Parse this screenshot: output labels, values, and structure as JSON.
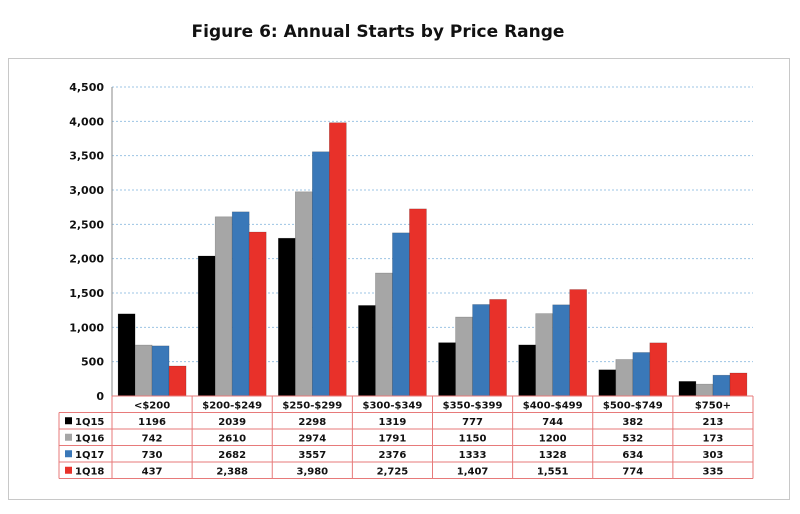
{
  "chart_data": {
    "type": "bar",
    "title": "Figure 6: Annual Starts by Price Range",
    "categories": [
      "<$200",
      "$200-$249",
      "$250-$299",
      "$300-$349",
      "$350-$399",
      "$400-$499",
      "$500-$749",
      "$750+"
    ],
    "ylim": [
      0,
      4500
    ],
    "yticks": [
      "0",
      "500",
      "1,000",
      "1,500",
      "2,000",
      "2,500",
      "3,000",
      "3,500",
      "4,000",
      "4,500"
    ],
    "ytick_values": [
      0,
      500,
      1000,
      1500,
      2000,
      2500,
      3000,
      3500,
      4000,
      4500
    ],
    "grid": true,
    "legend": "data-table",
    "series": [
      {
        "name": "1Q15",
        "color": "#000000",
        "values": [
          1196,
          2039,
          2298,
          1319,
          777,
          744,
          382,
          213
        ],
        "labels": [
          "1196",
          "2039",
          "2298",
          "1319",
          "777",
          "744",
          "382",
          "213"
        ]
      },
      {
        "name": "1Q16",
        "color": "#a6a6a6",
        "values": [
          742,
          2610,
          2974,
          1791,
          1150,
          1200,
          532,
          173
        ],
        "labels": [
          "742",
          "2610",
          "2974",
          "1791",
          "1150",
          "1200",
          "532",
          "173"
        ]
      },
      {
        "name": "1Q17",
        "color": "#3a78b8",
        "values": [
          730,
          2682,
          3557,
          2376,
          1333,
          1328,
          634,
          303
        ],
        "labels": [
          "730",
          "2682",
          "3557",
          "2376",
          "1333",
          "1328",
          "634",
          "303"
        ]
      },
      {
        "name": "1Q18",
        "color": "#e8312a",
        "values": [
          437,
          2388,
          3980,
          2725,
          1407,
          1551,
          774,
          335
        ],
        "labels": [
          "437",
          "2,388",
          "3,980",
          "2,725",
          "1,407",
          "1,551",
          "774",
          "335"
        ]
      }
    ]
  }
}
